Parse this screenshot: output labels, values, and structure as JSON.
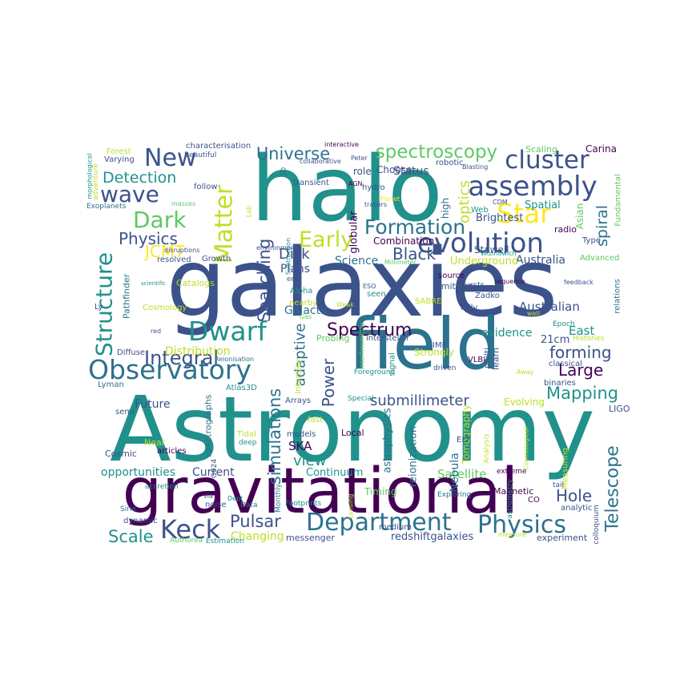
{
  "words": [
    {
      "text": "Astronomy",
      "color": "#21918c"
    },
    {
      "text": "galaxies",
      "color": "#3b528b"
    },
    {
      "text": "gravitational",
      "color": "#440154"
    },
    {
      "text": "halo",
      "color": "#21918c"
    },
    {
      "text": "field",
      "color": "#2c728e"
    },
    {
      "text": "Department",
      "color": "#2c728e"
    },
    {
      "text": "Physics",
      "color": "#2c728e"
    },
    {
      "text": "evolution",
      "color": "#3b528b"
    },
    {
      "text": "Observatory",
      "color": "#2c728e"
    },
    {
      "text": "Keck",
      "color": "#3b528b"
    },
    {
      "text": "cluster",
      "color": "#3b528b"
    },
    {
      "text": "assembly",
      "color": "#3b528b"
    },
    {
      "text": "spectroscopy",
      "color": "#5ec962"
    },
    {
      "text": "Star",
      "color": "#fde725"
    },
    {
      "text": "Dwarf",
      "color": "#21918c"
    },
    {
      "text": "wave",
      "color": "#3b528b"
    },
    {
      "text": "Dark",
      "color": "#5ec962"
    },
    {
      "text": "New",
      "color": "#3b528b"
    },
    {
      "text": "Matter",
      "color": "#bddf26"
    },
    {
      "text": "Structure",
      "color": "#21918c"
    },
    {
      "text": "Telescope",
      "color": "#2c728e"
    },
    {
      "text": "Early",
      "color": "#bddf26"
    },
    {
      "text": "Formation",
      "color": "#2c728e"
    },
    {
      "text": "Spectrum",
      "color": "#440154"
    },
    {
      "text": "Integral",
      "color": "#3b528b"
    },
    {
      "text": "Universe",
      "color": "#2c728e"
    },
    {
      "text": "Detection",
      "color": "#21918c"
    },
    {
      "text": "Physics",
      "color": "#3b528b"
    },
    {
      "text": "Large",
      "color": "#440154"
    },
    {
      "text": "forming",
      "color": "#3b528b"
    },
    {
      "text": "Mapping",
      "color": "#21918c"
    },
    {
      "text": "Pulsar",
      "color": "#3b528b"
    },
    {
      "text": "Hole",
      "color": "#3b528b"
    },
    {
      "text": "Black",
      "color": "#3b528b"
    },
    {
      "text": "Scale",
      "color": "#21918c"
    },
    {
      "text": "Disk",
      "color": "#3b528b"
    },
    {
      "text": "JCMT",
      "color": "#fde725"
    },
    {
      "text": "Searching",
      "color": "#3b528b"
    },
    {
      "text": "adaptive",
      "color": "#2c728e"
    },
    {
      "text": "Power",
      "color": "#3b528b"
    },
    {
      "text": "simulations",
      "color": "#2c728e"
    },
    {
      "text": "submillimeter",
      "color": "#3b528b"
    },
    {
      "text": "optics",
      "color": "#bddf26"
    },
    {
      "text": "spiral",
      "color": "#2c728e"
    },
    {
      "text": "view",
      "color": "#21918c"
    },
    {
      "text": "Satellite",
      "color": "#5ec962"
    },
    {
      "text": "Changing",
      "color": "#bddf26"
    },
    {
      "text": "Galactic",
      "color": "#2c728e"
    },
    {
      "text": "Australian",
      "color": "#3b528b"
    },
    {
      "text": "Australia",
      "color": "#3b528b"
    },
    {
      "text": "Science",
      "color": "#2c728e"
    },
    {
      "text": "Future",
      "color": "#3b528b"
    },
    {
      "text": "evidence",
      "color": "#21918c"
    },
    {
      "text": "Distribution",
      "color": "#bddf26"
    },
    {
      "text": "opportunities",
      "color": "#21918c"
    },
    {
      "text": "Current",
      "color": "#3b528b"
    },
    {
      "text": "Continuum",
      "color": "#21918c"
    },
    {
      "text": "Status",
      "color": "#3b528b"
    },
    {
      "text": "East",
      "color": "#21918c"
    },
    {
      "text": "Plans",
      "color": "#3b528b"
    },
    {
      "text": "SKA",
      "color": "#440154"
    },
    {
      "text": "21cm",
      "color": "#3b528b"
    },
    {
      "text": "Underground",
      "color": "#bddf26"
    },
    {
      "text": "Timing",
      "color": "#5ec962"
    },
    {
      "text": "Spatial",
      "color": "#21918c"
    },
    {
      "text": "Brightest",
      "color": "#3b528b"
    },
    {
      "text": "globular",
      "color": "#440154"
    },
    {
      "text": "Strongly",
      "color": "#bddf26"
    },
    {
      "text": "Nebula",
      "color": "#2c728e"
    },
    {
      "text": "reionization",
      "color": "#2c728e"
    },
    {
      "text": "astrophysics",
      "color": "#2c728e"
    },
    {
      "text": "Tomography",
      "color": "#bddf26"
    },
    {
      "text": "redshiftgalaxies",
      "color": "#3b528b"
    },
    {
      "text": "messenger",
      "color": "#3b528b"
    },
    {
      "text": "experiment",
      "color": "#3b528b"
    },
    {
      "text": "Magnetic",
      "color": "#440154"
    },
    {
      "text": "Evolving",
      "color": "#bddf26"
    },
    {
      "text": "Choose",
      "color": "#3b528b"
    },
    {
      "text": "role",
      "color": "#3b528b"
    },
    {
      "text": "high",
      "color": "#2c728e"
    },
    {
      "text": "Combination",
      "color": "#440154"
    },
    {
      "text": "Stawell",
      "color": "#3b528b"
    },
    {
      "text": "Asian",
      "color": "#5ec962"
    },
    {
      "text": "Carina",
      "color": "#440154"
    },
    {
      "text": "Scaling",
      "color": "#5ec962"
    },
    {
      "text": "Fundamental",
      "color": "#5ec962"
    },
    {
      "text": "radio",
      "color": "#440154"
    },
    {
      "text": "Type",
      "color": "#3b528b"
    },
    {
      "text": "Advanced",
      "color": "#5ec962"
    },
    {
      "text": "relations",
      "color": "#2c728e"
    },
    {
      "text": "Epoch",
      "color": "#21918c"
    },
    {
      "text": "Histories",
      "color": "#bddf26"
    },
    {
      "text": "classical",
      "color": "#3b528b"
    },
    {
      "text": "binaries",
      "color": "#3b528b"
    },
    {
      "text": "LIGO",
      "color": "#3b528b"
    },
    {
      "text": "Measuring",
      "color": "#bddf26"
    },
    {
      "text": "tail",
      "color": "#3b528b"
    },
    {
      "text": "analytic",
      "color": "#3b528b"
    },
    {
      "text": "colloquium",
      "color": "#3b528b"
    },
    {
      "text": "measure",
      "color": "#bddf26"
    },
    {
      "text": "Catalogs",
      "color": "#bddf26"
    },
    {
      "text": "Cosmology",
      "color": "#bddf26"
    },
    {
      "text": "Pathfinder",
      "color": "#2c728e"
    },
    {
      "text": "Ly",
      "color": "#3b528b"
    },
    {
      "text": "Diffuse",
      "color": "#3b528b"
    },
    {
      "text": "Lyman",
      "color": "#2c728e"
    },
    {
      "text": "semi",
      "color": "#3b528b"
    },
    {
      "text": "Near",
      "color": "#bddf26"
    },
    {
      "text": "Cosmic",
      "color": "#3b528b"
    },
    {
      "text": "accretion",
      "color": "#21918c"
    },
    {
      "text": "Sirio",
      "color": "#2c728e"
    },
    {
      "text": "dynamic",
      "color": "#3b528b"
    },
    {
      "text": "Authorea",
      "color": "#5ec962"
    },
    {
      "text": "Estimation",
      "color": "#21918c"
    },
    {
      "text": "noise",
      "color": "#3b528b"
    },
    {
      "text": "via",
      "color": "#2c728e"
    },
    {
      "text": "Dept",
      "color": "#21918c"
    },
    {
      "text": "Monthly",
      "color": "#2c728e"
    },
    {
      "text": "spectrographs",
      "color": "#2c728e"
    },
    {
      "text": "G024",
      "color": "#3b528b"
    },
    {
      "text": "articles",
      "color": "#440154"
    },
    {
      "text": "Atlas3D",
      "color": "#21918c"
    },
    {
      "text": "Tidal",
      "color": "#bddf26"
    },
    {
      "text": "deep",
      "color": "#21918c"
    },
    {
      "text": "models",
      "color": "#3b528b"
    },
    {
      "text": "fast",
      "color": "#bddf26"
    },
    {
      "text": "Local",
      "color": "#440154"
    },
    {
      "text": "Arrays",
      "color": "#3b528b"
    },
    {
      "text": "Special",
      "color": "#21918c"
    },
    {
      "text": "Foreground",
      "color": "#21918c"
    },
    {
      "text": "Intensity",
      "color": "#bddf26"
    },
    {
      "text": "signal",
      "color": "#21918c"
    },
    {
      "text": "Probing",
      "color": "#5ec962"
    },
    {
      "text": "interstellar",
      "color": "#3b528b"
    },
    {
      "text": "IMF",
      "color": "#3b528b"
    },
    {
      "text": "VLBI",
      "color": "#440154"
    },
    {
      "text": "driven",
      "color": "#3b528b"
    },
    {
      "text": "multi",
      "color": "#3b528b"
    },
    {
      "text": "learn",
      "color": "#3b528b"
    },
    {
      "text": "ELT",
      "color": "#3b528b"
    },
    {
      "text": "Analysis",
      "color": "#bddf26"
    },
    {
      "text": "extreme",
      "color": "#440154"
    },
    {
      "text": "CO",
      "color": "#440154"
    },
    {
      "text": "astrometry",
      "color": "#21918c"
    },
    {
      "text": "Exploring",
      "color": "#2c728e"
    },
    {
      "text": "medium",
      "color": "#3b528b"
    },
    {
      "text": "source",
      "color": "#440154"
    },
    {
      "text": "bursts",
      "color": "#3b528b"
    },
    {
      "text": "emitters",
      "color": "#3b528b"
    },
    {
      "text": "seen",
      "color": "#21918c"
    },
    {
      "text": "SABRE",
      "color": "#bddf26"
    },
    {
      "text": "fully",
      "color": "#3b528b"
    },
    {
      "text": "Zadko",
      "color": "#3b528b"
    },
    {
      "text": "sequence",
      "color": "#440154"
    },
    {
      "text": "nearby",
      "color": "#bddf26"
    },
    {
      "text": "Alpha",
      "color": "#21918c"
    },
    {
      "text": "era",
      "color": "#3b528b"
    },
    {
      "text": "Subtraction",
      "color": "#21918c"
    },
    {
      "text": "Footprints",
      "color": "#21918c"
    },
    {
      "text": "Data",
      "color": "#2c728e"
    },
    {
      "text": "Lensing",
      "color": "#bddf26"
    },
    {
      "text": "Interferometry",
      "color": "#5ec962"
    },
    {
      "text": "Cosmological",
      "color": "#bddf26"
    },
    {
      "text": "Away",
      "color": "#bddf26"
    },
    {
      "text": "Weak",
      "color": "#bddf26"
    },
    {
      "text": "Gas",
      "color": "#5ec962"
    },
    {
      "text": "ESO",
      "color": "#3b528b"
    },
    {
      "text": "Millimeter",
      "color": "#5ec962"
    },
    {
      "text": "Reionisation",
      "color": "#2c728e"
    },
    {
      "text": "red",
      "color": "#3b528b"
    },
    {
      "text": "resolved",
      "color": "#3b528b"
    },
    {
      "text": "Growth",
      "color": "#3b528b"
    },
    {
      "text": "disruptions",
      "color": "#3b528b"
    },
    {
      "text": "environment",
      "color": "#3b528b"
    },
    {
      "text": "tracers",
      "color": "#3b528b"
    },
    {
      "text": "Planet",
      "color": "#fde725"
    },
    {
      "text": "Web",
      "color": "#21918c"
    },
    {
      "text": "CDM",
      "color": "#3b528b"
    },
    {
      "text": "Wizinowich",
      "color": "#21918c"
    },
    {
      "text": "hydro",
      "color": "#3b528b"
    },
    {
      "text": "AGN",
      "color": "#440154"
    },
    {
      "text": "transient",
      "color": "#3b528b"
    },
    {
      "text": "3D",
      "color": "#2c728e"
    },
    {
      "text": "collaborative",
      "color": "#3b528b"
    },
    {
      "text": "Peter",
      "color": "#3b528b"
    },
    {
      "text": "interactive",
      "color": "#440154"
    },
    {
      "text": "robotic",
      "color": "#3b528b"
    },
    {
      "text": "Blasting",
      "color": "#3b528b"
    },
    {
      "text": "characterisation",
      "color": "#3b528b"
    },
    {
      "text": "Beautiful",
      "color": "#3b528b"
    },
    {
      "text": "Forest",
      "color": "#bddf26"
    },
    {
      "text": "Varying",
      "color": "#3b528b"
    },
    {
      "text": "adventure",
      "color": "#bddf26"
    },
    {
      "text": "morphological",
      "color": "#21918c"
    },
    {
      "text": "Exoplanets",
      "color": "#2c728e"
    },
    {
      "text": "follow",
      "color": "#3b528b"
    },
    {
      "text": "masses",
      "color": "#5ec962"
    },
    {
      "text": "Lab",
      "color": "#bddf26"
    },
    {
      "text": "feedback",
      "color": "#3b528b"
    },
    {
      "text": "scientific",
      "color": "#21918c"
    },
    {
      "text": "well",
      "color": "#bddf26"
    }
  ]
}
